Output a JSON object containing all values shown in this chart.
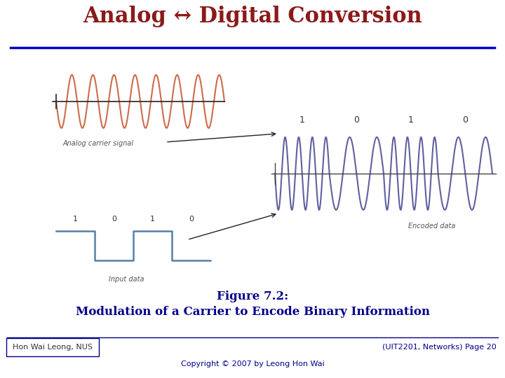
{
  "title": "Analog ↔ Digital Conversion",
  "title_color": "#8B1A1A",
  "title_fontsize": 22,
  "title_fontstyle": "bold",
  "divider_color": "#0000CC",
  "bg_color": "#FFFFFF",
  "carrier_color": "#CD6B4B",
  "encoded_color": "#6060A0",
  "digital_color": "#5580AA",
  "carrier_label": "Analog carrier signal",
  "digital_label": "Input data",
  "encoded_label": "Encoded data",
  "fig_caption_line1": "Figure 7.2:",
  "fig_caption_line2": "Modulation of a Carrier to Encode Binary Information",
  "caption_color": "#00008B",
  "caption_fontsize": 12,
  "footer_left": "Hon Wai Leong, NUS",
  "footer_center": "Copyright © 2007 by Leong Hon Wai",
  "footer_right": "(UIT2201, Networks) Page 20",
  "footer_color": "#00008B",
  "footer_fontsize": 8,
  "bits": [
    1,
    0,
    1,
    0
  ],
  "arrow_color": "#222222",
  "axis_color": "#444444"
}
